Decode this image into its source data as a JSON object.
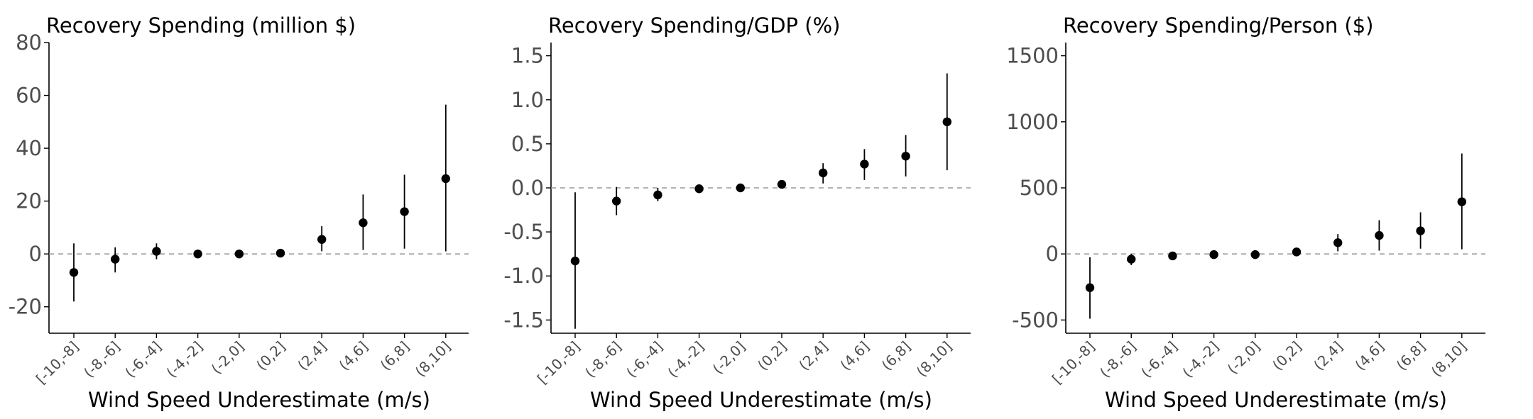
{
  "chart_data": [
    {
      "type": "scatter",
      "title": "Recovery Spending (million $)",
      "xlabel": "Wind Speed Underestimate (m/s)",
      "ylabel": "",
      "categories": [
        "[-10,-8]",
        "(-8,-6]",
        "(-6,-4]",
        "(-4,-2]",
        "(-2,0]",
        "(0,2]",
        "(2,4]",
        "(4,6]",
        "(6,8]",
        "(8,10]"
      ],
      "values": [
        -7,
        -2,
        1,
        0,
        0,
        0.3,
        5.5,
        11.8,
        16,
        28.5
      ],
      "ci_low": [
        -18,
        -7,
        -2,
        -0.5,
        -0.5,
        -0.3,
        1,
        1.5,
        2,
        1
      ],
      "ci_high": [
        4,
        2.5,
        4,
        0.5,
        0.5,
        1,
        10.5,
        22.5,
        30,
        56.5
      ],
      "ylim": [
        -30,
        80
      ],
      "yticks": [
        -20,
        0,
        20,
        40,
        60,
        80
      ],
      "ytick_labels": [
        "-20",
        "0",
        "20",
        "40",
        "60",
        "80"
      ],
      "reference_line": 0,
      "grid": false
    },
    {
      "type": "scatter",
      "title": "Recovery Spending/GDP (%)",
      "xlabel": "Wind Speed Underestimate (m/s)",
      "ylabel": "",
      "categories": [
        "[-10,-8]",
        "(-8,-6]",
        "(-6,-4]",
        "(-4,-2]",
        "(-2,0]",
        "(0,2]",
        "(2,4]",
        "(4,6]",
        "(6,8]",
        "(8,10]"
      ],
      "values": [
        -0.83,
        -0.15,
        -0.08,
        -0.01,
        0,
        0.04,
        0.17,
        0.27,
        0.36,
        0.75
      ],
      "ci_low": [
        -1.6,
        -0.31,
        -0.15,
        -0.03,
        -0.02,
        0.02,
        0.05,
        0.09,
        0.13,
        0.2
      ],
      "ci_high": [
        -0.05,
        0.01,
        0,
        0.01,
        0.02,
        0.06,
        0.28,
        0.44,
        0.6,
        1.3
      ],
      "ylim": [
        -1.65,
        1.65
      ],
      "yticks": [
        -1.5,
        -1.0,
        -0.5,
        0.0,
        0.5,
        1.0,
        1.5
      ],
      "ytick_labels": [
        "-1.5",
        "-1.0",
        "-0.5",
        "0.0",
        "0.5",
        "1.0",
        "1.5"
      ],
      "reference_line": 0,
      "grid": false
    },
    {
      "type": "scatter",
      "title": "Recovery Spending/Person ($)",
      "xlabel": "Wind Speed Underestimate (m/s)",
      "ylabel": "",
      "categories": [
        "[-10,-8]",
        "(-8,-6]",
        "(-6,-4]",
        "(-4,-2]",
        "(-2,0]",
        "(0,2]",
        "(2,4]",
        "(4,6]",
        "(6,8]",
        "(8,10]"
      ],
      "values": [
        -255,
        -40,
        -15,
        -5,
        -5,
        15,
        85,
        140,
        175,
        395
      ],
      "ci_low": [
        -490,
        -85,
        -30,
        -15,
        -15,
        5,
        20,
        25,
        40,
        35
      ],
      "ci_high": [
        -25,
        0,
        0,
        5,
        5,
        25,
        150,
        255,
        315,
        760
      ],
      "ylim": [
        -600,
        1600
      ],
      "yticks": [
        -500,
        0,
        500,
        1000,
        1500
      ],
      "ytick_labels": [
        "-500",
        "0",
        "500",
        "1000",
        "1500"
      ],
      "reference_line": 0,
      "grid": false
    }
  ]
}
